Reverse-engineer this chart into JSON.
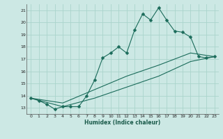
{
  "xlabel": "Humidex (Indice chaleur)",
  "bg_color": "#cce8e4",
  "grid_color": "#aad4cc",
  "line_color": "#1a6b5a",
  "xlim": [
    -0.5,
    23.5
  ],
  "ylim": [
    12.5,
    21.5
  ],
  "yticks": [
    13,
    14,
    15,
    16,
    17,
    18,
    19,
    20,
    21
  ],
  "xticks": [
    0,
    1,
    2,
    3,
    4,
    5,
    6,
    7,
    8,
    9,
    10,
    11,
    12,
    13,
    14,
    15,
    16,
    17,
    18,
    19,
    20,
    21,
    22,
    23
  ],
  "line1_x": [
    0,
    1,
    2,
    3,
    4,
    5,
    6,
    7,
    8,
    9,
    10,
    11,
    12,
    13,
    14,
    15,
    16,
    17,
    18,
    19,
    20,
    21,
    22,
    23
  ],
  "line1_y": [
    13.8,
    13.6,
    13.3,
    12.9,
    13.1,
    13.1,
    13.1,
    14.0,
    15.3,
    17.1,
    17.5,
    18.0,
    17.5,
    19.4,
    20.7,
    20.2,
    21.2,
    20.2,
    19.3,
    19.2,
    18.8,
    17.2,
    17.1,
    17.2
  ],
  "line2_x": [
    0,
    23
  ],
  "line2_y": [
    13.8,
    17.2
  ],
  "line3_x": [
    0,
    23
  ],
  "line3_y": [
    13.8,
    17.2
  ],
  "line2_ctrl_x": [
    0,
    4,
    8,
    12,
    16,
    20,
    23
  ],
  "line2_ctrl_y": [
    13.8,
    13.4,
    14.5,
    15.6,
    16.5,
    17.5,
    17.2
  ],
  "line3_ctrl_x": [
    0,
    4,
    8,
    12,
    16,
    20,
    23
  ],
  "line3_ctrl_y": [
    13.8,
    13.1,
    13.8,
    14.7,
    15.6,
    16.8,
    17.2
  ]
}
